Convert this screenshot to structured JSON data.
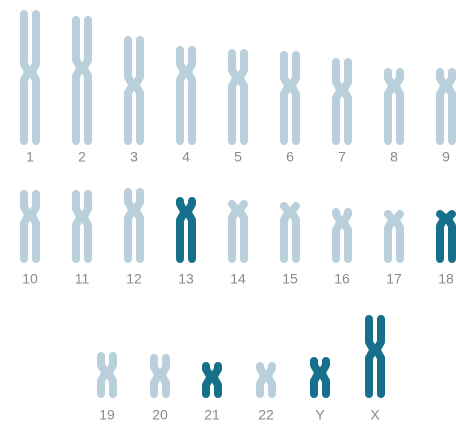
{
  "rows": [
    [
      {
        "label": "1",
        "color": "#b9cfdc"
      },
      {
        "label": "2",
        "color": "#b9cfdc"
      },
      {
        "label": "3",
        "color": "#b9cfdc"
      },
      {
        "label": "4",
        "color": "#b9cfdc"
      },
      {
        "label": "5",
        "color": "#b9cfdc"
      },
      {
        "label": "6",
        "color": "#b9cfdc"
      },
      {
        "label": "7",
        "color": "#b9cfdc"
      },
      {
        "label": "8",
        "color": "#b9cfdc"
      },
      {
        "label": "9",
        "color": "#b9cfdc"
      }
    ],
    [
      {
        "label": "10",
        "color": "#b9cfdc"
      },
      {
        "label": "11",
        "color": "#b9cfdc"
      },
      {
        "label": "12",
        "color": "#b9cfdc"
      },
      {
        "label": "13",
        "color": "#17708b"
      },
      {
        "label": "14",
        "color": "#b9cfdc"
      },
      {
        "label": "15",
        "color": "#b9cfdc"
      },
      {
        "label": "16",
        "color": "#b9cfdc"
      },
      {
        "label": "17",
        "color": "#b9cfdc"
      },
      {
        "label": "18",
        "color": "#17708b"
      }
    ],
    [
      {
        "label": "19",
        "color": "#b9cfdc"
      },
      {
        "label": "20",
        "color": "#b9cfdc"
      },
      {
        "label": "21",
        "color": "#17708b"
      },
      {
        "label": "22",
        "color": "#b9cfdc"
      },
      {
        "label": "Y",
        "color": "#17708b"
      },
      {
        "label": "X",
        "color": "#17708b"
      }
    ]
  ]
}
